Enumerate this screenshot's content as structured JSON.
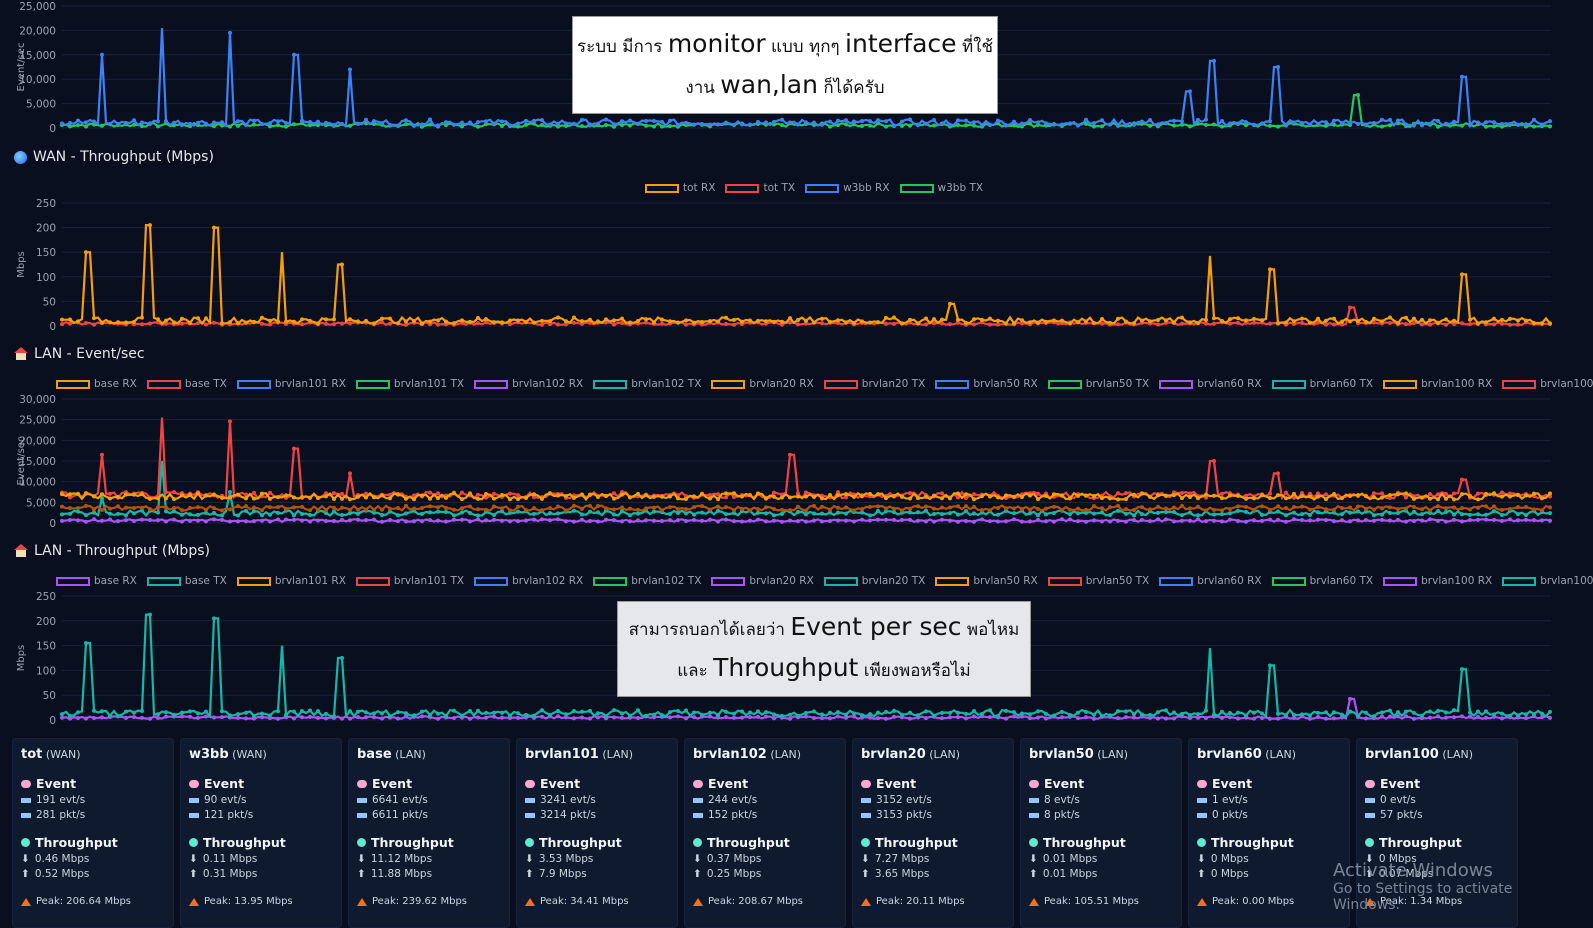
{
  "charts": {
    "wan_event": {
      "ylabel": "Event/sec",
      "yticks": [
        "25,000",
        "20,000",
        "15,000",
        "10,000",
        "5,000",
        "0"
      ]
    },
    "wan_throughput": {
      "title": "WAN - Throughput (Mbps)",
      "ylabel": "Mbps",
      "yticks": [
        "250",
        "200",
        "150",
        "100",
        "50",
        "0"
      ],
      "legend": [
        {
          "label": "tot RX",
          "color": "#f59e0b"
        },
        {
          "label": "tot TX",
          "color": "#ef4444"
        },
        {
          "label": "w3bb RX",
          "color": "#3b82f6"
        },
        {
          "label": "w3bb TX",
          "color": "#22c55e"
        }
      ]
    },
    "lan_event": {
      "title": "LAN - Event/sec",
      "ylabel": "Event/sec",
      "yticks": [
        "30,000",
        "25,000",
        "20,000",
        "15,000",
        "10,000",
        "5,000",
        "0"
      ],
      "legend": [
        {
          "label": "base RX",
          "color": "#f59e0b"
        },
        {
          "label": "base TX",
          "color": "#ef4444"
        },
        {
          "label": "brvlan101 RX",
          "color": "#3b82f6"
        },
        {
          "label": "brvlan101 TX",
          "color": "#22c55e"
        },
        {
          "label": "brvlan102 RX",
          "color": "#a855f7"
        },
        {
          "label": "brvlan102 TX",
          "color": "#14b8a6"
        },
        {
          "label": "brvlan20 RX",
          "color": "#f59e0b"
        },
        {
          "label": "brvlan20 TX",
          "color": "#ef4444"
        },
        {
          "label": "brvlan50 RX",
          "color": "#3b82f6"
        },
        {
          "label": "brvlan50 TX",
          "color": "#22c55e"
        },
        {
          "label": "brvlan60 RX",
          "color": "#a855f7"
        },
        {
          "label": "brvlan60 TX",
          "color": "#14b8a6"
        },
        {
          "label": "brvlan100 RX",
          "color": "#f59e0b"
        },
        {
          "label": "brvlan100",
          "color": "#ef4444"
        }
      ]
    },
    "lan_throughput": {
      "title": "LAN - Throughput (Mbps)",
      "ylabel": "Mbps",
      "yticks": [
        "250",
        "200",
        "150",
        "100",
        "50",
        "0"
      ],
      "legend": [
        {
          "label": "base RX",
          "color": "#a855f7"
        },
        {
          "label": "base TX",
          "color": "#14b8a6"
        },
        {
          "label": "brvlan101 RX",
          "color": "#f59e0b"
        },
        {
          "label": "brvlan101 TX",
          "color": "#ef4444"
        },
        {
          "label": "brvlan102 RX",
          "color": "#3b82f6"
        },
        {
          "label": "brvlan102 TX",
          "color": "#22c55e"
        },
        {
          "label": "brvlan20 RX",
          "color": "#a855f7"
        },
        {
          "label": "brvlan20 TX",
          "color": "#14b8a6"
        },
        {
          "label": "brvlan50 RX",
          "color": "#f59e0b"
        },
        {
          "label": "brvlan50 TX",
          "color": "#ef4444"
        },
        {
          "label": "brvlan60 RX",
          "color": "#3b82f6"
        },
        {
          "label": "brvlan60 TX",
          "color": "#22c55e"
        },
        {
          "label": "brvlan100 RX",
          "color": "#a855f7"
        },
        {
          "label": "brvlan100",
          "color": "#14b8a6"
        }
      ]
    }
  },
  "callouts": {
    "top": {
      "prefix1": "ระบบ มีการ ",
      "big1": "monitor",
      "mid1": " แบบ ทุกๆ ",
      "big2": "interface",
      "suffix1": " ที่ใช้",
      "prefix2": "งาน ",
      "big3": "wan,lan",
      "suffix2": " ก็ได้ครับ"
    },
    "bottom": {
      "prefix1": "สามารถบอกได้เลยว่า ",
      "big1": "Event per sec",
      "suffix1": " พอไหม",
      "prefix2": "และ ",
      "big2": "Throughput",
      "suffix2": " เพียงพอหรือไม่"
    }
  },
  "cards": [
    {
      "name": "tot",
      "kind": "(WAN)",
      "event_label": "Event",
      "evt": "191 evt/s",
      "pkt": "281 pkt/s",
      "th_label": "Throughput",
      "down": "0.46 Mbps",
      "up": "0.52 Mbps",
      "peak": "Peak: 206.64 Mbps"
    },
    {
      "name": "w3bb",
      "kind": "(WAN)",
      "event_label": "Event",
      "evt": "90 evt/s",
      "pkt": "121 pkt/s",
      "th_label": "Throughput",
      "down": "0.11 Mbps",
      "up": "0.31 Mbps",
      "peak": "Peak: 13.95 Mbps"
    },
    {
      "name": "base",
      "kind": "(LAN)",
      "event_label": "Event",
      "evt": "6641 evt/s",
      "pkt": "6611 pkt/s",
      "th_label": "Throughput",
      "down": "11.12 Mbps",
      "up": "11.88 Mbps",
      "peak": "Peak: 239.62 Mbps"
    },
    {
      "name": "brvlan101",
      "kind": "(LAN)",
      "event_label": "Event",
      "evt": "3241 evt/s",
      "pkt": "3214 pkt/s",
      "th_label": "Throughput",
      "down": "3.53 Mbps",
      "up": "7.9 Mbps",
      "peak": "Peak: 34.41 Mbps"
    },
    {
      "name": "brvlan102",
      "kind": "(LAN)",
      "event_label": "Event",
      "evt": "244 evt/s",
      "pkt": "152 pkt/s",
      "th_label": "Throughput",
      "down": "0.37 Mbps",
      "up": "0.25 Mbps",
      "peak": "Peak: 208.67 Mbps"
    },
    {
      "name": "brvlan20",
      "kind": "(LAN)",
      "event_label": "Event",
      "evt": "3152 evt/s",
      "pkt": "3153 pkt/s",
      "th_label": "Throughput",
      "down": "7.27 Mbps",
      "up": "3.65 Mbps",
      "peak": "Peak: 20.11 Mbps"
    },
    {
      "name": "brvlan50",
      "kind": "(LAN)",
      "event_label": "Event",
      "evt": "8 evt/s",
      "pkt": "8 pkt/s",
      "th_label": "Throughput",
      "down": "0.01 Mbps",
      "up": "0.01 Mbps",
      "peak": "Peak: 105.51 Mbps"
    },
    {
      "name": "brvlan60",
      "kind": "(LAN)",
      "event_label": "Event",
      "evt": "1 evt/s",
      "pkt": "0 pkt/s",
      "th_label": "Throughput",
      "down": "0 Mbps",
      "up": "0 Mbps",
      "peak": "Peak: 0.00 Mbps"
    },
    {
      "name": "brvlan100",
      "kind": "(LAN)",
      "event_label": "Event",
      "evt": "0 evt/s",
      "pkt": "57 pkt/s",
      "th_label": "Throughput",
      "down": "0 Mbps",
      "up": "0.07 Mbps",
      "peak": "Peak: 1.34 Mbps"
    }
  ],
  "watermark": {
    "line1": "Activate Windows",
    "line2": "Go to Settings to activate Windows."
  }
}
